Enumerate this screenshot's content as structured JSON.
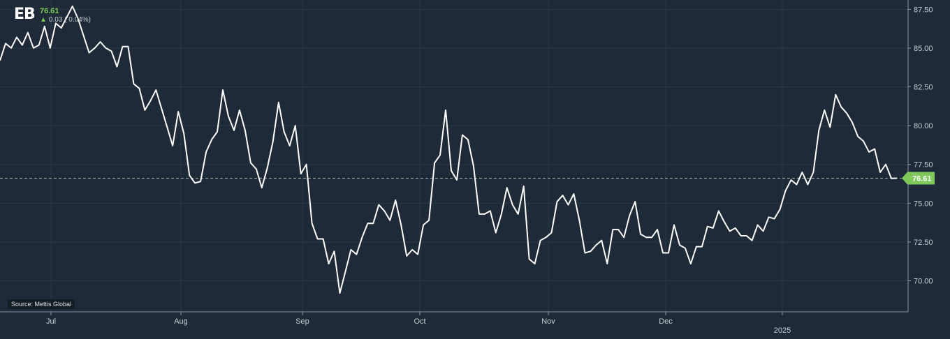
{
  "header": {
    "ticker": "EB",
    "last_price": "76.61",
    "change": "0.03 ( 0.04%)",
    "direction_icon": "arrow-up-icon"
  },
  "source_label": "Source: Mettis Global",
  "colors": {
    "background": "#1e2a37",
    "line": "#ffffff",
    "grid": "#2b3846",
    "accent": "#7ec95a",
    "axis_text": "#c8cfd6"
  },
  "chart_data": {
    "type": "line",
    "title": "EB",
    "ylim": [
      68.0,
      88.1
    ],
    "y_ticks": [
      "87.50",
      "85.00",
      "82.50",
      "80.00",
      "77.50",
      "75.00",
      "72.50",
      "70.00"
    ],
    "x_ticks": [
      "Jul",
      "Aug",
      "Sep",
      "Oct",
      "Nov",
      "Dec",
      "2025"
    ],
    "grid": true,
    "y_axis_position": "right",
    "last_value": 76.61,
    "last_value_label": "76.61",
    "series": [
      {
        "values": [
          84.2,
          85.3,
          85.0,
          85.7,
          85.2,
          86.0,
          85.0,
          85.2,
          86.4,
          85.0,
          86.6,
          86.3,
          87.0,
          87.7,
          86.9,
          85.8,
          84.7,
          85.0,
          85.4,
          85.0,
          84.8,
          83.8,
          85.1,
          85.1,
          82.7,
          82.4,
          81.0,
          81.6,
          82.3,
          81.1,
          79.9,
          78.7,
          80.9,
          79.5,
          76.8,
          76.3,
          76.4,
          78.3,
          79.1,
          79.6,
          82.3,
          80.6,
          79.7,
          81.0,
          79.7,
          77.6,
          77.2,
          76.0,
          77.3,
          79.0,
          81.5,
          79.6,
          78.7,
          80.0,
          76.9,
          77.5,
          73.7,
          72.7,
          72.7,
          71.1,
          71.9,
          69.2,
          70.6,
          72.0,
          71.7,
          72.8,
          73.7,
          73.7,
          74.9,
          74.5,
          73.9,
          75.2,
          73.6,
          71.6,
          72.0,
          71.7,
          73.6,
          73.9,
          77.6,
          78.1,
          81.0,
          77.1,
          76.5,
          79.4,
          79.1,
          77.4,
          74.3,
          74.3,
          74.5,
          73.1,
          74.3,
          76.0,
          74.9,
          74.3,
          76.1,
          71.4,
          71.1,
          72.6,
          72.8,
          73.1,
          75.1,
          75.5,
          74.9,
          75.6,
          73.9,
          71.8,
          71.9,
          72.3,
          72.6,
          71.1,
          73.3,
          73.3,
          72.8,
          74.2,
          75.1,
          73.0,
          72.8,
          72.8,
          73.3,
          71.8,
          71.8,
          73.6,
          72.3,
          72.1,
          71.1,
          72.2,
          72.2,
          73.5,
          73.4,
          74.5,
          73.8,
          73.2,
          73.4,
          72.9,
          72.9,
          72.6,
          73.6,
          73.2,
          74.1,
          74.0,
          74.6,
          75.8,
          76.5,
          76.2,
          77.0,
          76.2,
          77.0,
          79.7,
          81.0,
          79.9,
          82.0,
          81.2,
          80.8,
          80.2,
          79.3,
          79.0,
          78.3,
          78.5,
          77.0,
          77.5,
          76.6,
          76.61
        ]
      }
    ]
  }
}
